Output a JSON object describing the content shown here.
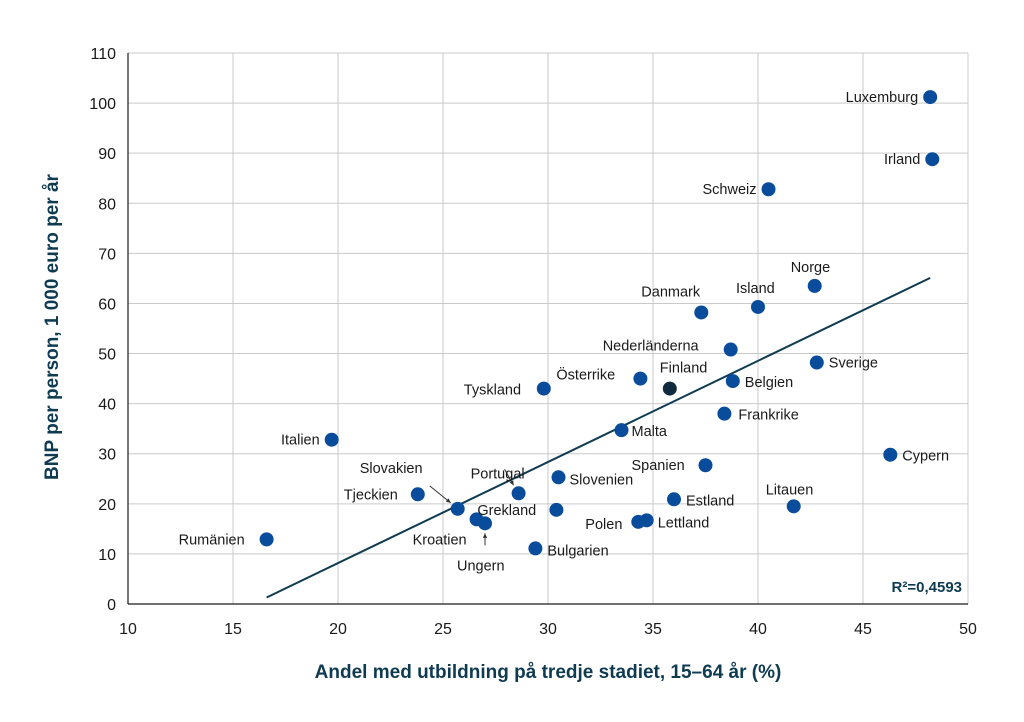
{
  "chart_data": {
    "type": "scatter",
    "xlabel": "Andel med utbildning på tredje stadiet, 15–64 år (%)",
    "ylabel": "BNP per person, 1 000 euro per år",
    "xlim": [
      10,
      50
    ],
    "ylim": [
      0,
      110
    ],
    "xticks": [
      10,
      15,
      20,
      25,
      30,
      35,
      40,
      45,
      50
    ],
    "yticks": [
      0,
      10,
      20,
      30,
      40,
      50,
      60,
      70,
      80,
      90,
      100,
      110
    ],
    "grid": true,
    "points": [
      {
        "label": "Luxemburg",
        "x": 48.2,
        "y": 101.2
      },
      {
        "label": "Irland",
        "x": 48.3,
        "y": 88.8
      },
      {
        "label": "Schweiz",
        "x": 40.5,
        "y": 82.8
      },
      {
        "label": "Norge",
        "x": 42.7,
        "y": 63.5
      },
      {
        "label": "Island",
        "x": 40.0,
        "y": 59.3
      },
      {
        "label": "Danmark",
        "x": 37.3,
        "y": 58.2
      },
      {
        "label": "Nederländerna",
        "x": 38.7,
        "y": 50.8
      },
      {
        "label": "Sverige",
        "x": 42.8,
        "y": 48.2
      },
      {
        "label": "Finland",
        "x": 35.8,
        "y": 43.0,
        "highlight": true
      },
      {
        "label": "Österrike",
        "x": 34.4,
        "y": 45.0
      },
      {
        "label": "Belgien",
        "x": 38.8,
        "y": 44.5
      },
      {
        "label": "Tyskland",
        "x": 29.8,
        "y": 43.0
      },
      {
        "label": "Frankrike",
        "x": 38.4,
        "y": 38.0
      },
      {
        "label": "Malta",
        "x": 33.5,
        "y": 34.7
      },
      {
        "label": "Italien",
        "x": 19.7,
        "y": 32.8
      },
      {
        "label": "Cypern",
        "x": 46.3,
        "y": 29.8
      },
      {
        "label": "Spanien",
        "x": 37.5,
        "y": 27.7
      },
      {
        "label": "Slovenien",
        "x": 30.5,
        "y": 25.3
      },
      {
        "label": "Portugal",
        "x": 28.6,
        "y": 22.1
      },
      {
        "label": "Tjeckien",
        "x": 23.8,
        "y": 21.9
      },
      {
        "label": "Estland",
        "x": 36.0,
        "y": 20.9
      },
      {
        "label": "Litauen",
        "x": 41.7,
        "y": 19.5
      },
      {
        "label": "Slovakien",
        "x": 25.7,
        "y": 19.0
      },
      {
        "label": "Grekland",
        "x": 30.4,
        "y": 18.8
      },
      {
        "label": "Kroatien",
        "x": 26.6,
        "y": 16.9
      },
      {
        "label": "Ungern",
        "x": 27.0,
        "y": 16.1
      },
      {
        "label": "Lettland",
        "x": 34.7,
        "y": 16.7
      },
      {
        "label": "Polen",
        "x": 34.3,
        "y": 16.4
      },
      {
        "label": "Rumänien",
        "x": 16.6,
        "y": 12.9
      },
      {
        "label": "Bulgarien",
        "x": 29.4,
        "y": 11.1
      }
    ],
    "trendline": {
      "x": [
        16.6,
        48.2
      ],
      "y": [
        1.3,
        65.1
      ]
    },
    "annotation": "R²=0,4593"
  },
  "colors": {
    "point": "#0a4c9c",
    "highlight": "#102a40",
    "trendline": "#0f3b52",
    "axis_title": "#0f3b52"
  }
}
